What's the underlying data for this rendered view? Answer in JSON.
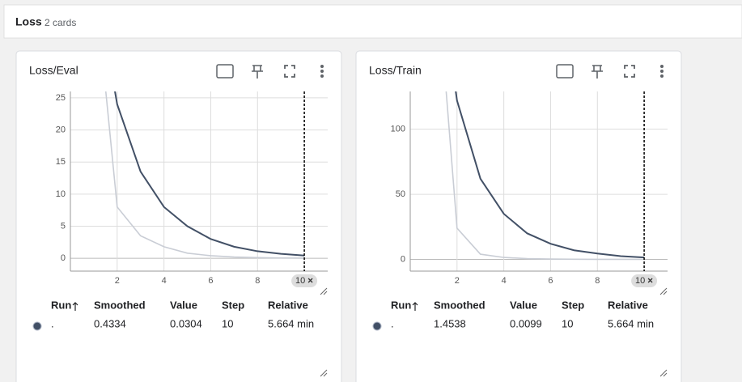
{
  "header": {
    "title": "Loss",
    "count": "2 cards"
  },
  "chart_data": [
    {
      "type": "line",
      "title": "Loss/Eval",
      "x": [
        1,
        2,
        3,
        4,
        5,
        6,
        7,
        8,
        9,
        10
      ],
      "series": [
        {
          "color": "#c9cdd5",
          "values": [
            45,
            8,
            3.5,
            1.8,
            0.8,
            0.4,
            0.2,
            0.1,
            0.05,
            0.0304
          ]
        },
        {
          "color": "#425066",
          "values": [
            45,
            24,
            13.5,
            8,
            5,
            3,
            1.8,
            1.1,
            0.7,
            0.4334
          ]
        }
      ],
      "xlim": [
        0,
        11
      ],
      "xticks": [
        2,
        4,
        6,
        8
      ],
      "ylim": [
        -2,
        26
      ],
      "yticks": [
        0,
        5,
        10,
        15,
        20,
        25
      ],
      "grid": true,
      "step_marker": 10
    },
    {
      "type": "line",
      "title": "Loss/Train",
      "x": [
        1,
        2,
        3,
        4,
        5,
        6,
        7,
        8,
        9,
        10
      ],
      "series": [
        {
          "color": "#c9cdd5",
          "values": [
            250,
            24,
            4,
            1.5,
            0.6,
            0.3,
            0.15,
            0.08,
            0.04,
            0.0099
          ]
        },
        {
          "color": "#425066",
          "values": [
            250,
            122,
            62,
            35,
            20,
            12,
            7,
            4.5,
            2.5,
            1.4538
          ]
        }
      ],
      "xlim": [
        0,
        11
      ],
      "xticks": [
        2,
        4,
        6,
        8
      ],
      "ylim": [
        -9,
        129
      ],
      "yticks": [
        0,
        50,
        100
      ],
      "grid": true,
      "step_marker": 10
    }
  ],
  "tables": [
    {
      "headers": [
        "Run",
        "Smoothed",
        "Value",
        "Step",
        "Relative"
      ],
      "rows": [
        [
          ".",
          0.4334,
          0.0304,
          10,
          "5.664 min"
        ]
      ]
    },
    {
      "headers": [
        "Run",
        "Smoothed",
        "Value",
        "Step",
        "Relative"
      ],
      "rows": [
        [
          ".",
          1.4538,
          0.0099,
          10,
          "5.664 min"
        ]
      ]
    }
  ]
}
